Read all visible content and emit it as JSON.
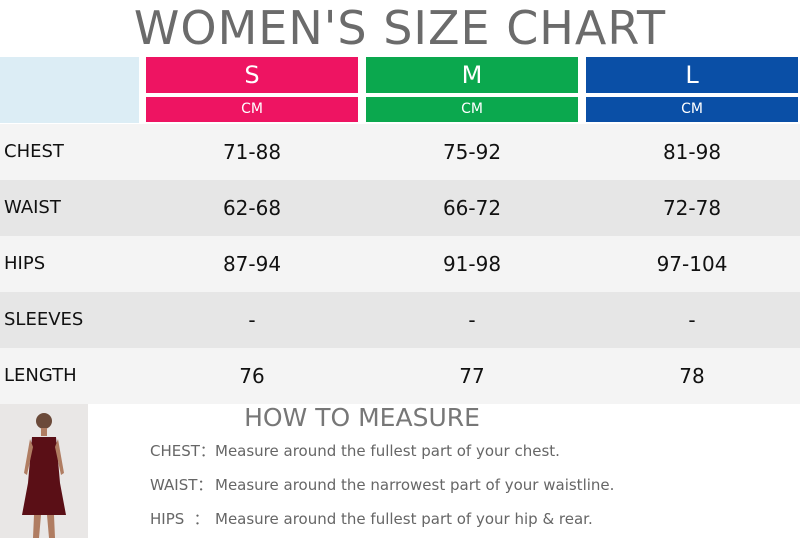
{
  "title": "WOMEN'S SIZE CHART",
  "table": {
    "sizes": [
      {
        "label": "S",
        "unit": "CM",
        "color": "#ee1462"
      },
      {
        "label": "M",
        "unit": "CM",
        "color": "#0ba84e"
      },
      {
        "label": "L",
        "unit": "CM",
        "color": "#0a4fa6"
      }
    ],
    "rows": [
      {
        "label": "CHEST",
        "values": [
          "71-88",
          "75-92",
          "81-98"
        ]
      },
      {
        "label": "WAIST",
        "values": [
          "62-68",
          "66-72",
          "72-78"
        ]
      },
      {
        "label": "HIPS",
        "values": [
          "87-94",
          "91-98",
          "97-104"
        ]
      },
      {
        "label": "SLEEVES",
        "values": [
          "-",
          "-",
          "-"
        ]
      },
      {
        "label": "LENGTH",
        "values": [
          "76",
          "77",
          "78"
        ]
      }
    ]
  },
  "measure": {
    "title": "HOW TO MEASURE",
    "items": [
      {
        "label": "CHEST：",
        "text": "Measure around the fullest part of your chest."
      },
      {
        "label": "WAIST：",
        "text": "Measure around the narrowest part of your waistline."
      },
      {
        "label": "HIPS  ：",
        "text": "Measure around the fullest part of your hip & rear."
      }
    ]
  }
}
